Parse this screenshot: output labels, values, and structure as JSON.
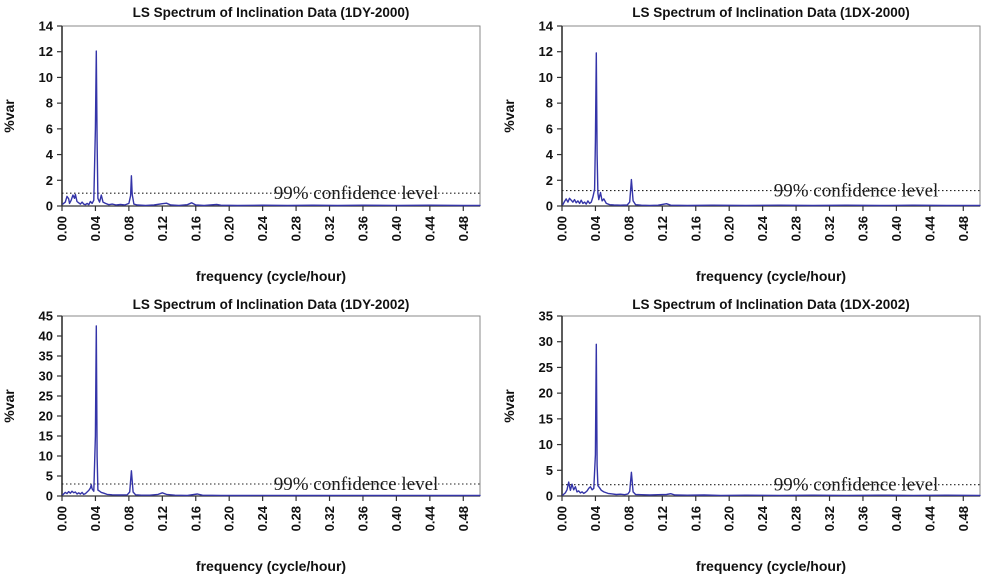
{
  "figure": {
    "background": "#ffffff",
    "description": "Four Lomb-Scargle spectra of inclination data arranged in a 2x2 grid"
  },
  "colors": {
    "series": "#3434a8",
    "axis": "#333333",
    "plot_border": "#8a8a8a",
    "confidence_line": "#222222",
    "text": "#111111"
  },
  "chart_data": [
    {
      "type": "line",
      "title": "LS Spectrum of Inclination Data (1DY-2000)",
      "xlabel": "frequency (cycle/hour)",
      "ylabel": "%var",
      "xlim": [
        0,
        0.5
      ],
      "ylim": [
        0,
        14
      ],
      "grid": false,
      "legend": "none",
      "xticks": [
        0.0,
        0.04,
        0.08,
        0.12,
        0.16,
        0.2,
        0.24,
        0.28,
        0.32,
        0.36,
        0.4,
        0.44,
        0.48
      ],
      "xtick_labels": [
        "0.00",
        "0.04",
        "0.08",
        "0.12",
        "0.16",
        "0.20",
        "0.24",
        "0.28",
        "0.32",
        "0.36",
        "0.40",
        "0.44",
        "0.48"
      ],
      "yticks": [
        0,
        2,
        4,
        6,
        8,
        10,
        12,
        14
      ],
      "confidence_level": 1.0,
      "confidence_label": "99% confidence level",
      "series": [
        {
          "name": "LS spectral power",
          "color": "#3434a8",
          "points": [
            [
              0.001,
              0.15
            ],
            [
              0.004,
              0.3
            ],
            [
              0.006,
              0.75
            ],
            [
              0.008,
              0.55
            ],
            [
              0.009,
              0.2
            ],
            [
              0.011,
              0.45
            ],
            [
              0.013,
              0.85
            ],
            [
              0.015,
              0.6
            ],
            [
              0.016,
              0.9
            ],
            [
              0.018,
              0.35
            ],
            [
              0.02,
              0.25
            ],
            [
              0.022,
              0.15
            ],
            [
              0.024,
              0.3
            ],
            [
              0.026,
              0.15
            ],
            [
              0.028,
              0.1
            ],
            [
              0.03,
              0.2
            ],
            [
              0.032,
              0.1
            ],
            [
              0.034,
              0.35
            ],
            [
              0.036,
              0.2
            ],
            [
              0.038,
              0.45
            ],
            [
              0.04,
              6.0
            ],
            [
              0.041,
              12.05
            ],
            [
              0.042,
              5.0
            ],
            [
              0.043,
              0.6
            ],
            [
              0.045,
              0.3
            ],
            [
              0.047,
              0.85
            ],
            [
              0.049,
              0.3
            ],
            [
              0.052,
              0.2
            ],
            [
              0.056,
              0.1
            ],
            [
              0.06,
              0.15
            ],
            [
              0.065,
              0.08
            ],
            [
              0.07,
              0.12
            ],
            [
              0.075,
              0.08
            ],
            [
              0.08,
              0.2
            ],
            [
              0.082,
              0.8
            ],
            [
              0.083,
              2.35
            ],
            [
              0.084,
              0.9
            ],
            [
              0.086,
              0.15
            ],
            [
              0.09,
              0.08
            ],
            [
              0.1,
              0.05
            ],
            [
              0.11,
              0.08
            ],
            [
              0.12,
              0.18
            ],
            [
              0.125,
              0.22
            ],
            [
              0.13,
              0.08
            ],
            [
              0.14,
              0.05
            ],
            [
              0.15,
              0.1
            ],
            [
              0.155,
              0.25
            ],
            [
              0.16,
              0.08
            ],
            [
              0.17,
              0.05
            ],
            [
              0.185,
              0.12
            ],
            [
              0.19,
              0.06
            ],
            [
              0.21,
              0.04
            ],
            [
              0.24,
              0.06
            ],
            [
              0.27,
              0.04
            ],
            [
              0.3,
              0.06
            ],
            [
              0.33,
              0.04
            ],
            [
              0.36,
              0.06
            ],
            [
              0.4,
              0.04
            ],
            [
              0.44,
              0.06
            ],
            [
              0.48,
              0.04
            ],
            [
              0.5,
              0.05
            ]
          ]
        }
      ]
    },
    {
      "type": "line",
      "title": "LS Spectrum of Inclination Data (1DX-2000)",
      "xlabel": "frequency (cycle/hour)",
      "ylabel": "%var",
      "xlim": [
        0,
        0.5
      ],
      "ylim": [
        0,
        14
      ],
      "grid": false,
      "legend": "none",
      "xticks": [
        0.0,
        0.04,
        0.08,
        0.12,
        0.16,
        0.2,
        0.24,
        0.28,
        0.32,
        0.36,
        0.4,
        0.44,
        0.48
      ],
      "xtick_labels": [
        "0.00",
        "0.04",
        "0.08",
        "0.12",
        "0.16",
        "0.20",
        "0.24",
        "0.28",
        "0.32",
        "0.36",
        "0.40",
        "0.44",
        "0.48"
      ],
      "yticks": [
        0,
        2,
        4,
        6,
        8,
        10,
        12,
        14
      ],
      "confidence_level": 1.2,
      "confidence_label": "99% confidence level",
      "series": [
        {
          "name": "LS spectral power",
          "color": "#3434a8",
          "points": [
            [
              0.001,
              0.1
            ],
            [
              0.003,
              0.35
            ],
            [
              0.005,
              0.55
            ],
            [
              0.007,
              0.3
            ],
            [
              0.009,
              0.6
            ],
            [
              0.011,
              0.45
            ],
            [
              0.013,
              0.3
            ],
            [
              0.015,
              0.5
            ],
            [
              0.017,
              0.25
            ],
            [
              0.019,
              0.4
            ],
            [
              0.021,
              0.2
            ],
            [
              0.023,
              0.45
            ],
            [
              0.025,
              0.2
            ],
            [
              0.027,
              0.3
            ],
            [
              0.029,
              0.15
            ],
            [
              0.031,
              0.4
            ],
            [
              0.033,
              0.2
            ],
            [
              0.035,
              0.3
            ],
            [
              0.037,
              0.7
            ],
            [
              0.039,
              1.3
            ],
            [
              0.04,
              5.0
            ],
            [
              0.041,
              11.9
            ],
            [
              0.042,
              4.0
            ],
            [
              0.043,
              1.0
            ],
            [
              0.044,
              0.5
            ],
            [
              0.046,
              1.05
            ],
            [
              0.048,
              0.4
            ],
            [
              0.05,
              0.55
            ],
            [
              0.053,
              0.2
            ],
            [
              0.057,
              0.1
            ],
            [
              0.062,
              0.08
            ],
            [
              0.07,
              0.06
            ],
            [
              0.078,
              0.08
            ],
            [
              0.081,
              0.3
            ],
            [
              0.083,
              2.05
            ],
            [
              0.085,
              0.4
            ],
            [
              0.088,
              0.1
            ],
            [
              0.095,
              0.06
            ],
            [
              0.105,
              0.05
            ],
            [
              0.115,
              0.06
            ],
            [
              0.125,
              0.18
            ],
            [
              0.13,
              0.06
            ],
            [
              0.15,
              0.04
            ],
            [
              0.18,
              0.06
            ],
            [
              0.22,
              0.04
            ],
            [
              0.26,
              0.06
            ],
            [
              0.3,
              0.04
            ],
            [
              0.34,
              0.06
            ],
            [
              0.38,
              0.04
            ],
            [
              0.42,
              0.06
            ],
            [
              0.46,
              0.04
            ],
            [
              0.5,
              0.05
            ]
          ]
        }
      ]
    },
    {
      "type": "line",
      "title": "LS Spectrum of Inclination Data (1DY-2002)",
      "xlabel": "frequency (cycle/hour)",
      "ylabel": "%var",
      "xlim": [
        0,
        0.5
      ],
      "ylim": [
        0,
        45
      ],
      "grid": false,
      "legend": "none",
      "xticks": [
        0.0,
        0.04,
        0.08,
        0.12,
        0.16,
        0.2,
        0.24,
        0.28,
        0.32,
        0.36,
        0.4,
        0.44,
        0.48
      ],
      "xtick_labels": [
        "0.00",
        "0.04",
        "0.08",
        "0.12",
        "0.16",
        "0.20",
        "0.24",
        "0.28",
        "0.32",
        "0.36",
        "0.40",
        "0.44",
        "0.48"
      ],
      "yticks": [
        0,
        5,
        10,
        15,
        20,
        25,
        30,
        35,
        40,
        45
      ],
      "confidence_level": 3.0,
      "confidence_label": "99% confidence level",
      "series": [
        {
          "name": "LS spectral power",
          "color": "#3434a8",
          "points": [
            [
              0.001,
              0.3
            ],
            [
              0.004,
              0.9
            ],
            [
              0.006,
              0.6
            ],
            [
              0.008,
              1.1
            ],
            [
              0.01,
              0.7
            ],
            [
              0.012,
              1.2
            ],
            [
              0.014,
              0.8
            ],
            [
              0.016,
              1.0
            ],
            [
              0.018,
              0.5
            ],
            [
              0.02,
              0.8
            ],
            [
              0.022,
              0.5
            ],
            [
              0.024,
              0.9
            ],
            [
              0.026,
              0.4
            ],
            [
              0.028,
              0.6
            ],
            [
              0.03,
              1.0
            ],
            [
              0.032,
              1.4
            ],
            [
              0.034,
              2.0
            ],
            [
              0.035,
              2.8
            ],
            [
              0.036,
              1.8
            ],
            [
              0.038,
              1.2
            ],
            [
              0.04,
              15.0
            ],
            [
              0.041,
              42.5
            ],
            [
              0.042,
              10.0
            ],
            [
              0.043,
              1.5
            ],
            [
              0.045,
              1.2
            ],
            [
              0.047,
              0.9
            ],
            [
              0.05,
              0.7
            ],
            [
              0.054,
              0.4
            ],
            [
              0.06,
              0.3
            ],
            [
              0.07,
              0.25
            ],
            [
              0.078,
              0.3
            ],
            [
              0.081,
              1.0
            ],
            [
              0.083,
              6.3
            ],
            [
              0.085,
              1.0
            ],
            [
              0.088,
              0.3
            ],
            [
              0.095,
              0.2
            ],
            [
              0.105,
              0.2
            ],
            [
              0.115,
              0.4
            ],
            [
              0.12,
              0.8
            ],
            [
              0.125,
              0.4
            ],
            [
              0.135,
              0.2
            ],
            [
              0.15,
              0.15
            ],
            [
              0.162,
              0.5
            ],
            [
              0.168,
              0.2
            ],
            [
              0.19,
              0.15
            ],
            [
              0.22,
              0.12
            ],
            [
              0.26,
              0.15
            ],
            [
              0.3,
              0.12
            ],
            [
              0.34,
              0.15
            ],
            [
              0.38,
              0.12
            ],
            [
              0.42,
              0.15
            ],
            [
              0.46,
              0.12
            ],
            [
              0.5,
              0.15
            ]
          ]
        }
      ]
    },
    {
      "type": "line",
      "title": "LS Spectrum of Inclination Data (1DX-2002)",
      "xlabel": "frequency (cycle/hour)",
      "ylabel": "%var",
      "xlim": [
        0,
        0.5
      ],
      "ylim": [
        0,
        35
      ],
      "grid": false,
      "legend": "none",
      "xticks": [
        0.0,
        0.04,
        0.08,
        0.12,
        0.16,
        0.2,
        0.24,
        0.28,
        0.32,
        0.36,
        0.4,
        0.44,
        0.48
      ],
      "xtick_labels": [
        "0.00",
        "0.04",
        "0.08",
        "0.12",
        "0.16",
        "0.20",
        "0.24",
        "0.28",
        "0.32",
        "0.36",
        "0.40",
        "0.44",
        "0.48"
      ],
      "yticks": [
        0,
        5,
        10,
        15,
        20,
        25,
        30,
        35
      ],
      "confidence_level": 2.2,
      "confidence_label": "99% confidence level",
      "series": [
        {
          "name": "LS spectral power",
          "color": "#3434a8",
          "points": [
            [
              0.001,
              0.2
            ],
            [
              0.004,
              0.6
            ],
            [
              0.006,
              1.2
            ],
            [
              0.008,
              2.7
            ],
            [
              0.01,
              1.1
            ],
            [
              0.012,
              2.3
            ],
            [
              0.014,
              1.2
            ],
            [
              0.016,
              1.8
            ],
            [
              0.018,
              0.8
            ],
            [
              0.02,
              1.0
            ],
            [
              0.022,
              0.6
            ],
            [
              0.024,
              0.8
            ],
            [
              0.026,
              0.5
            ],
            [
              0.028,
              0.7
            ],
            [
              0.03,
              1.0
            ],
            [
              0.032,
              1.5
            ],
            [
              0.034,
              1.8
            ],
            [
              0.036,
              1.2
            ],
            [
              0.038,
              1.5
            ],
            [
              0.04,
              8.0
            ],
            [
              0.041,
              29.5
            ],
            [
              0.042,
              6.0
            ],
            [
              0.043,
              2.0
            ],
            [
              0.045,
              1.6
            ],
            [
              0.047,
              1.1
            ],
            [
              0.05,
              0.8
            ],
            [
              0.055,
              0.5
            ],
            [
              0.06,
              0.4
            ],
            [
              0.065,
              0.3
            ],
            [
              0.07,
              0.35
            ],
            [
              0.075,
              0.25
            ],
            [
              0.079,
              0.4
            ],
            [
              0.081,
              0.9
            ],
            [
              0.083,
              4.6
            ],
            [
              0.085,
              0.8
            ],
            [
              0.088,
              0.3
            ],
            [
              0.095,
              0.25
            ],
            [
              0.105,
              0.2
            ],
            [
              0.115,
              0.25
            ],
            [
              0.125,
              0.3
            ],
            [
              0.13,
              0.45
            ],
            [
              0.135,
              0.2
            ],
            [
              0.15,
              0.15
            ],
            [
              0.17,
              0.2
            ],
            [
              0.19,
              0.12
            ],
            [
              0.22,
              0.15
            ],
            [
              0.26,
              0.12
            ],
            [
              0.3,
              0.15
            ],
            [
              0.34,
              0.12
            ],
            [
              0.38,
              0.15
            ],
            [
              0.42,
              0.12
            ],
            [
              0.46,
              0.15
            ],
            [
              0.5,
              0.12
            ]
          ]
        }
      ]
    }
  ]
}
